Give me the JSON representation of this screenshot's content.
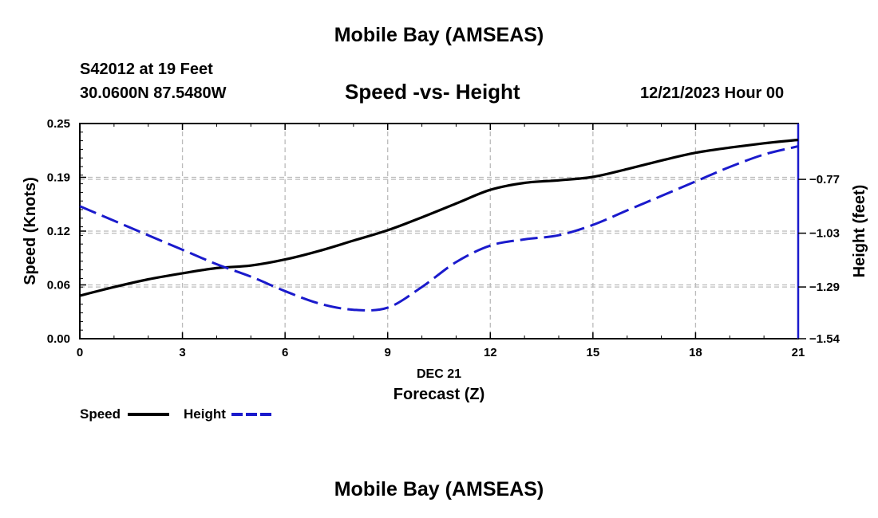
{
  "header": {
    "title": "Mobile Bay (AMSEAS)",
    "station": "S42012 at 19 Feet",
    "coordinates": "30.0600N  87.5480W",
    "subtitle": "Speed -vs- Height",
    "datetime": "12/21/2023 Hour 00"
  },
  "footer": {
    "title": "Mobile Bay (AMSEAS)"
  },
  "chart_data": {
    "type": "line",
    "title": "Speed -vs- Height",
    "xlabel": "Forecast (Z)",
    "xlabel_date": "DEC 21",
    "ylabel": "Speed (Knots)",
    "y2label": "Height (feet)",
    "xlim": [
      0,
      21
    ],
    "ylim": [
      0,
      0.25
    ],
    "y2lim": [
      -1.54,
      -0.5
    ],
    "x_ticks": [
      0,
      3,
      6,
      9,
      12,
      15,
      18,
      21
    ],
    "x_tick_labels": [
      "0",
      "3",
      "6",
      "9",
      "12",
      "15",
      "18",
      "21"
    ],
    "y_ticks": [
      0,
      0.0625,
      0.125,
      0.1875,
      0.25
    ],
    "y_tick_labels": [
      "0.00",
      "0.06",
      "0.12",
      "0.19",
      "0.25"
    ],
    "y2_ticks": [
      -1.54,
      -1.29,
      -1.03,
      -0.77
    ],
    "y2_tick_labels": [
      "−1.54",
      "−1.29",
      "−1.03",
      "−0.77"
    ],
    "grid": true,
    "legend_placement": "bottom-left",
    "series": [
      {
        "name": "Speed",
        "axis": "left",
        "color": "#000000",
        "style": "solid",
        "x": [
          0,
          1,
          2,
          3,
          4,
          5,
          6,
          7,
          8,
          9,
          10,
          11,
          12,
          13,
          14,
          15,
          16,
          17,
          18,
          19,
          20,
          21
        ],
        "values": [
          0.05,
          0.06,
          0.069,
          0.076,
          0.082,
          0.085,
          0.092,
          0.102,
          0.114,
          0.126,
          0.141,
          0.157,
          0.173,
          0.181,
          0.184,
          0.188,
          0.197,
          0.207,
          0.216,
          0.222,
          0.227,
          0.231
        ]
      },
      {
        "name": "Height",
        "axis": "right",
        "color": "#1a1acc",
        "style": "dashed",
        "x": [
          0,
          1,
          2,
          3,
          4,
          5,
          6,
          7,
          8,
          9,
          10,
          11,
          12,
          13,
          14,
          15,
          16,
          17,
          18,
          19,
          20,
          21
        ],
        "values": [
          -0.9,
          -0.97,
          -1.04,
          -1.11,
          -1.18,
          -1.24,
          -1.31,
          -1.37,
          -1.4,
          -1.39,
          -1.29,
          -1.17,
          -1.09,
          -1.06,
          -1.04,
          -0.99,
          -0.92,
          -0.85,
          -0.78,
          -0.71,
          -0.65,
          -0.61
        ]
      }
    ]
  }
}
